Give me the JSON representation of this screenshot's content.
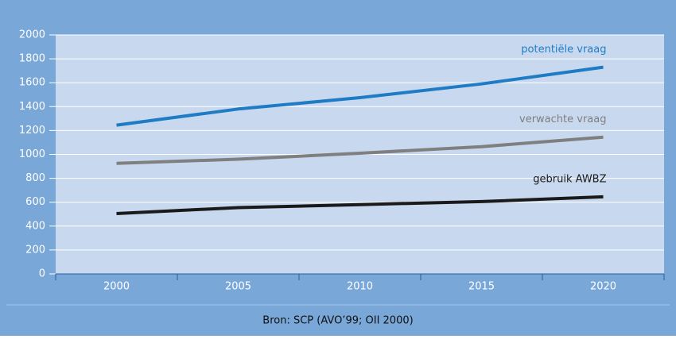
{
  "chart_data": {
    "type": "line",
    "categories": [
      "2000",
      "2005",
      "2010",
      "2015",
      "2020"
    ],
    "series": [
      {
        "name": "potentiële vraag",
        "color": "#1f7cc4",
        "values": [
          1245,
          1380,
          1475,
          1590,
          1730
        ]
      },
      {
        "name": "verwachte vraag",
        "color": "#7f7f7f",
        "values": [
          925,
          960,
          1010,
          1065,
          1145
        ]
      },
      {
        "name": "gebruik AWBZ",
        "color": "#1a1a1a",
        "values": [
          505,
          555,
          580,
          605,
          645
        ]
      }
    ],
    "ylim": [
      0,
      2000
    ],
    "yticks": [
      0,
      200,
      400,
      600,
      800,
      1000,
      1200,
      1400,
      1600,
      1800,
      2000
    ],
    "grid": true,
    "source": "Bron: SCP (AVO’99; OII 2000)"
  }
}
